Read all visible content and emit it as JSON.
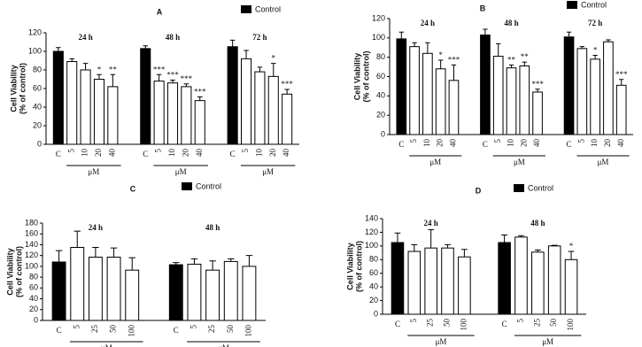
{
  "chart_data": [
    {
      "type": "bar",
      "panel": "A",
      "legend": "Control",
      "ylabel": [
        "Cell Viability",
        "(% of control)"
      ],
      "ylim": [
        0,
        120
      ],
      "yticks": [
        0,
        20,
        40,
        60,
        80,
        100,
        120
      ],
      "groups": [
        {
          "name": "24 h",
          "unit": "μM",
          "categories": [
            "C",
            "5",
            "10",
            "20",
            "40"
          ],
          "values": [
            100,
            89,
            80,
            70,
            62
          ],
          "errors": [
            4,
            3,
            7,
            5,
            13
          ],
          "annotations": [
            null,
            null,
            null,
            "*",
            "**"
          ]
        },
        {
          "name": "48 h",
          "unit": "μM",
          "categories": [
            "C",
            "5",
            "10",
            "20",
            "40"
          ],
          "values": [
            103,
            68,
            66,
            62,
            47
          ],
          "errors": [
            3,
            7,
            3,
            3,
            4
          ],
          "annotations": [
            null,
            "***",
            "***",
            "***",
            "***"
          ]
        },
        {
          "name": "72 h",
          "unit": "μM",
          "categories": [
            "C",
            "5",
            "10",
            "20",
            "40"
          ],
          "values": [
            105,
            92,
            78,
            73,
            54
          ],
          "errors": [
            7,
            9,
            5,
            14,
            5
          ],
          "annotations": [
            null,
            null,
            null,
            "*",
            "***"
          ]
        }
      ]
    },
    {
      "type": "bar",
      "panel": "B",
      "legend": "Control",
      "ylabel": [
        "Cell Viability",
        "(% of control)"
      ],
      "ylim": [
        0,
        120
      ],
      "yticks": [
        0,
        20,
        40,
        60,
        80,
        100,
        120
      ],
      "groups": [
        {
          "name": "24 h",
          "unit": "μM",
          "categories": [
            "C",
            "5",
            "10",
            "20",
            "40"
          ],
          "values": [
            99,
            91,
            84,
            68,
            56
          ],
          "errors": [
            7,
            4,
            11,
            9,
            16
          ],
          "annotations": [
            null,
            null,
            null,
            "*",
            "***"
          ]
        },
        {
          "name": "48 h",
          "unit": "μM",
          "categories": [
            "C",
            "5",
            "10",
            "20",
            "40"
          ],
          "values": [
            103,
            81,
            69,
            71,
            44
          ],
          "errors": [
            6,
            13,
            3,
            4,
            3
          ],
          "annotations": [
            null,
            null,
            "**",
            "**",
            "***"
          ]
        },
        {
          "name": "72 h",
          "unit": "μM",
          "categories": [
            "C",
            "5",
            "10",
            "20",
            "40"
          ],
          "values": [
            101,
            89,
            78,
            96,
            51
          ],
          "errors": [
            5,
            2,
            4,
            2,
            6
          ],
          "annotations": [
            null,
            null,
            "*",
            null,
            "***"
          ]
        }
      ]
    },
    {
      "type": "bar",
      "panel": "C",
      "legend": "Control",
      "ylabel": [
        "Cell Viability",
        "(% of control)"
      ],
      "ylim": [
        0,
        180
      ],
      "yticks": [
        0,
        20,
        40,
        60,
        80,
        100,
        120,
        140,
        160,
        180
      ],
      "groups": [
        {
          "name": "24 h",
          "unit": "μM",
          "categories": [
            "C",
            "5",
            "25",
            "50",
            "100"
          ],
          "values": [
            108,
            135,
            117,
            117,
            93
          ],
          "errors": [
            21,
            30,
            18,
            17,
            23
          ],
          "annotations": [
            null,
            null,
            null,
            null,
            null
          ]
        },
        {
          "name": "48 h",
          "unit": "μM",
          "categories": [
            "C",
            "5",
            "25",
            "50",
            "100"
          ],
          "values": [
            103,
            104,
            93,
            109,
            100
          ],
          "errors": [
            4,
            10,
            17,
            5,
            20
          ],
          "annotations": [
            null,
            null,
            null,
            null,
            null
          ]
        }
      ]
    },
    {
      "type": "bar",
      "panel": "D",
      "legend": "Control",
      "ylabel": [
        "Cell Viability",
        "(% of control)"
      ],
      "ylim": [
        0,
        140
      ],
      "yticks": [
        0,
        20,
        40,
        60,
        80,
        100,
        120,
        140
      ],
      "groups": [
        {
          "name": "24 h",
          "unit": "μM",
          "categories": [
            "C",
            "5",
            "25",
            "50",
            "100"
          ],
          "values": [
            105,
            92,
            97,
            97,
            84
          ],
          "errors": [
            14,
            10,
            27,
            5,
            11
          ],
          "annotations": [
            null,
            null,
            null,
            null,
            null
          ]
        },
        {
          "name": "48 h",
          "unit": "μM",
          "categories": [
            "C",
            "5",
            "25",
            "50",
            "100"
          ],
          "values": [
            105,
            113,
            91,
            100,
            80
          ],
          "errors": [
            11,
            2,
            3,
            1,
            12
          ],
          "annotations": [
            null,
            null,
            null,
            null,
            "*"
          ]
        }
      ]
    }
  ]
}
